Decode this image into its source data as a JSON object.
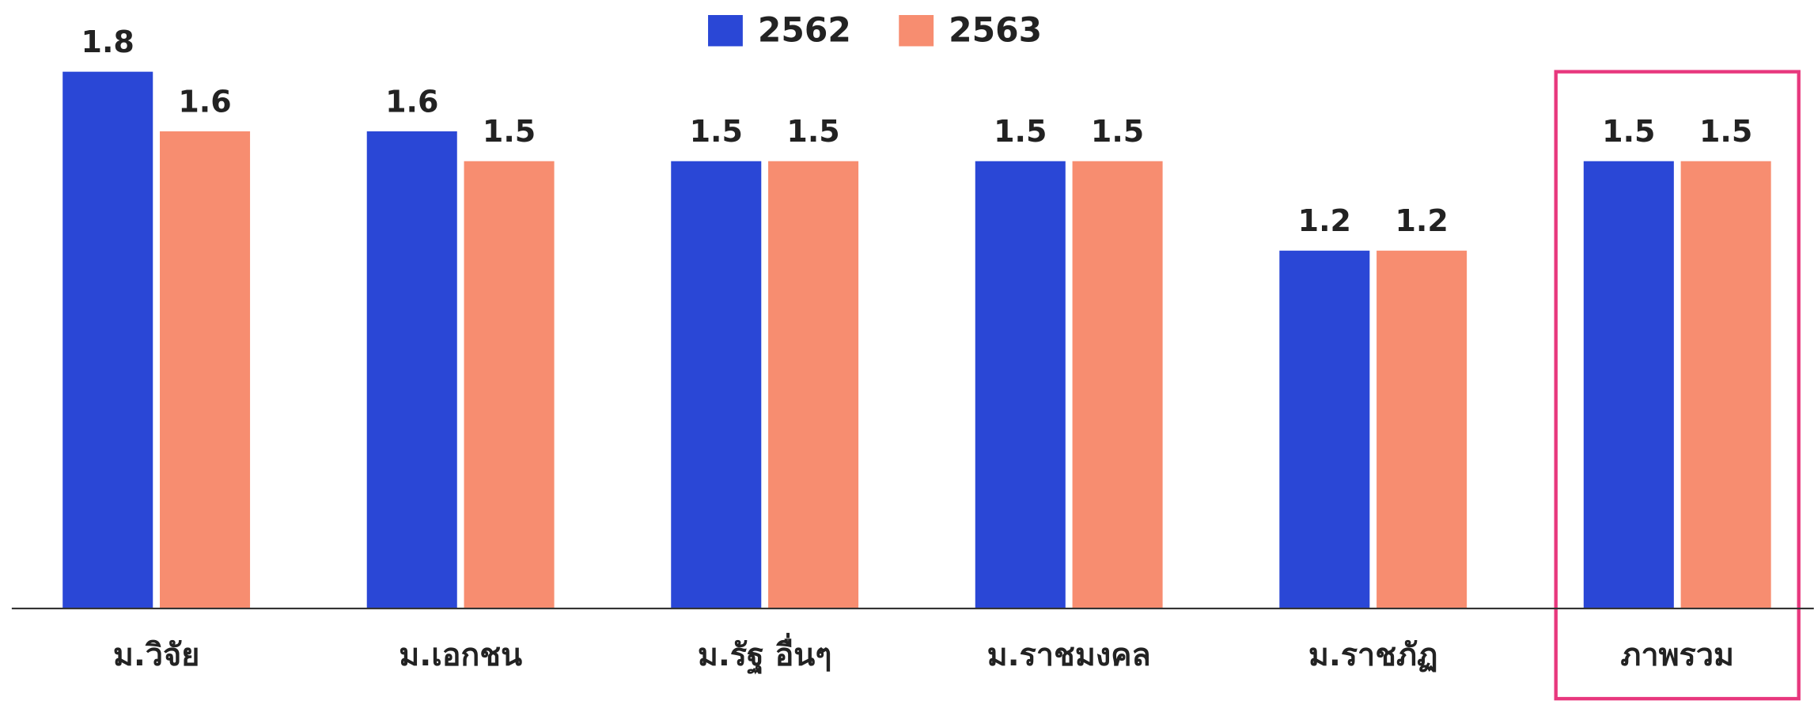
{
  "chart_data": {
    "type": "bar",
    "categories": [
      "ม.วิจัย",
      "ม.เอกชน",
      "ม.รัฐ อื่นๆ",
      "ม.ราชมงคล",
      "ม.ราชภัฏ",
      "ภาพรวม"
    ],
    "series": [
      {
        "name": "2562",
        "color": "#2a47d6",
        "values": [
          1.8,
          1.6,
          1.5,
          1.5,
          1.2,
          1.5
        ]
      },
      {
        "name": "2563",
        "color": "#f78d70",
        "values": [
          1.6,
          1.5,
          1.5,
          1.5,
          1.2,
          1.5
        ]
      }
    ],
    "ylim": [
      0,
      1.8
    ]
  }
}
